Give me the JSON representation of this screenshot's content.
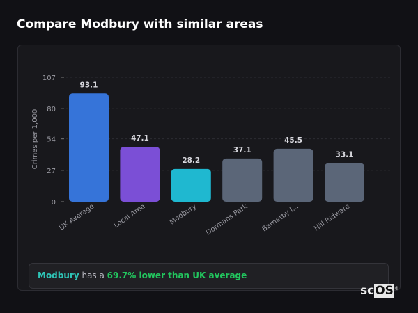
{
  "title": "Compare Modbury with similar areas",
  "chart_data": {
    "type": "bar",
    "categories": [
      "UK Average",
      "Local Area",
      "Modbury",
      "Dormans Park",
      "Barnetby l...",
      "Hill Ridware"
    ],
    "values": [
      93.1,
      47.1,
      28.2,
      37.1,
      45.5,
      33.1
    ],
    "colors": [
      "#3674d9",
      "#7b4fd6",
      "#1fb8d0",
      "#5b6678",
      "#5b6678",
      "#5b6678"
    ],
    "ylabel": "Crimes per 1,000",
    "yticks": [
      0,
      27,
      54,
      80,
      107
    ],
    "ylim": [
      0,
      107
    ],
    "grid": "dashed horizontal",
    "data_labels": [
      "93.1",
      "47.1",
      "28.2",
      "37.1",
      "45.5",
      "33.1"
    ]
  },
  "summary": {
    "area": "Modbury",
    "middle": " has a ",
    "comparison": "69.7% lower than UK average"
  },
  "logo": {
    "text_a": "sc",
    "text_b": "OS",
    "mark": "®"
  }
}
